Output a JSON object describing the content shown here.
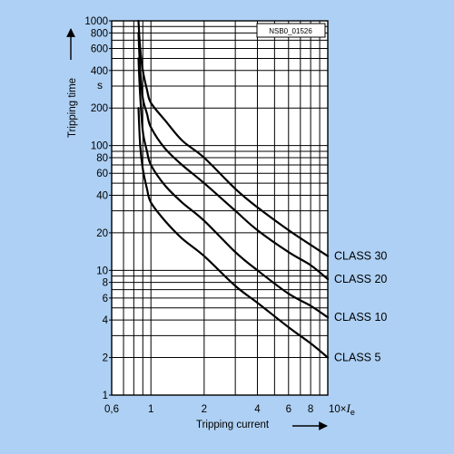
{
  "figure_code": "NSB0_01526",
  "chart_data": {
    "type": "line",
    "title": "",
    "xlabel": "Tripping current",
    "ylabel": "Tripping time",
    "y_unit": "s",
    "x_unit_prefix": "10×",
    "x_unit_symbol": "I",
    "x_unit_subscript": "e",
    "x_scale": "log",
    "y_scale": "log",
    "xlim": [
      0.6,
      10
    ],
    "ylim": [
      1,
      1000
    ],
    "x_ticks": [
      0.6,
      0.7,
      0.8,
      0.9,
      1,
      2,
      3,
      4,
      5,
      6,
      7,
      8,
      9,
      10
    ],
    "x_tick_labels": [
      {
        "value": 0.6,
        "label": "0,6"
      },
      {
        "value": 1,
        "label": "1"
      },
      {
        "value": 2,
        "label": "2"
      },
      {
        "value": 4,
        "label": "4"
      },
      {
        "value": 6,
        "label": "6"
      },
      {
        "value": 8,
        "label": "8"
      }
    ],
    "y_ticks": [
      1,
      2,
      3,
      4,
      5,
      6,
      7,
      8,
      9,
      10,
      20,
      30,
      40,
      50,
      60,
      70,
      80,
      90,
      100,
      200,
      300,
      400,
      500,
      600,
      700,
      800,
      900,
      1000
    ],
    "y_tick_labels": [
      {
        "value": 1,
        "label": "1"
      },
      {
        "value": 2,
        "label": "2"
      },
      {
        "value": 4,
        "label": "4"
      },
      {
        "value": 6,
        "label": "6"
      },
      {
        "value": 8,
        "label": "8"
      },
      {
        "value": 10,
        "label": "10"
      },
      {
        "value": 20,
        "label": "20"
      },
      {
        "value": 40,
        "label": "40"
      },
      {
        "value": 60,
        "label": "60"
      },
      {
        "value": 80,
        "label": "80"
      },
      {
        "value": 100,
        "label": "100"
      },
      {
        "value": 200,
        "label": "200"
      },
      {
        "value": 400,
        "label": "400"
      },
      {
        "value": 600,
        "label": "600"
      },
      {
        "value": 800,
        "label": "800"
      },
      {
        "value": 1000,
        "label": "1000"
      }
    ],
    "grid": true,
    "legend": "series labels at right end of curves",
    "line_color": "#000000",
    "series": [
      {
        "name": "CLASS 30",
        "x": [
          0.85,
          0.87,
          0.9,
          0.95,
          1.0,
          1.2,
          1.5,
          2.0,
          3.0,
          4.0,
          6.0,
          8.0,
          10.0
        ],
        "y": [
          1000,
          600,
          400,
          280,
          220,
          160,
          110,
          80,
          45,
          32,
          21,
          16,
          13
        ]
      },
      {
        "name": "CLASS 20",
        "x": [
          0.85,
          0.87,
          0.9,
          0.95,
          1.0,
          1.2,
          1.5,
          2.0,
          3.0,
          4.0,
          6.0,
          8.0,
          10.0
        ],
        "y": [
          800,
          400,
          240,
          180,
          140,
          95,
          70,
          50,
          30,
          21,
          14,
          11,
          8.5
        ]
      },
      {
        "name": "CLASS 10",
        "x": [
          0.85,
          0.87,
          0.9,
          0.95,
          1.0,
          1.2,
          1.5,
          2.0,
          3.0,
          4.0,
          6.0,
          8.0,
          10.0
        ],
        "y": [
          500,
          250,
          130,
          90,
          70,
          48,
          35,
          25,
          14,
          10,
          6.5,
          5.2,
          4.2
        ]
      },
      {
        "name": "CLASS 5",
        "x": [
          0.85,
          0.87,
          0.9,
          0.95,
          1.0,
          1.2,
          1.5,
          2.0,
          3.0,
          4.0,
          6.0,
          8.0,
          10.0
        ],
        "y": [
          200,
          100,
          65,
          45,
          35,
          25,
          18,
          13,
          7.5,
          5.5,
          3.5,
          2.6,
          2.0
        ]
      }
    ]
  }
}
